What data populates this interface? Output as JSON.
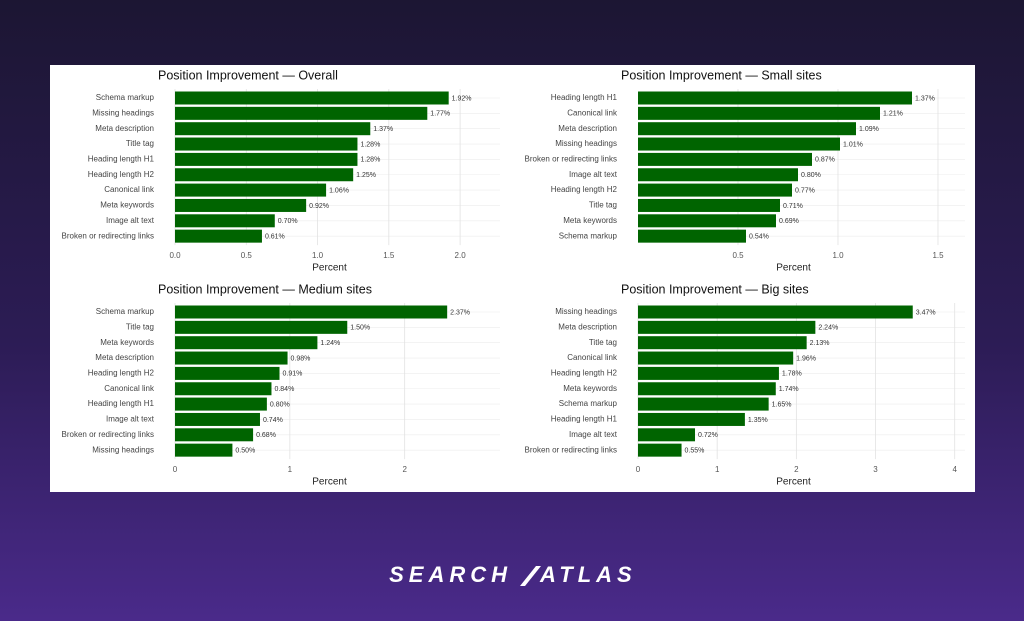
{
  "chart_data": [
    {
      "type": "barh",
      "title": "Position Improvement — Overall",
      "xlabel": "Percent",
      "categories": [
        "Schema markup",
        "Missing headings",
        "Meta description",
        "Title tag",
        "Heading length H1",
        "Heading length H2",
        "Canonical link",
        "Meta keywords",
        "Image alt text",
        "Broken or redirecting links"
      ],
      "values": [
        1.92,
        1.77,
        1.37,
        1.28,
        1.28,
        1.25,
        1.06,
        0.92,
        0.7,
        0.61
      ],
      "value_labels": [
        "1.92%",
        "1.77%",
        "1.37%",
        "1.28%",
        "1.28%",
        "1.25%",
        "1.06%",
        "0.92%",
        "0.70%",
        "0.61%"
      ],
      "color": "#006400",
      "xlim": [
        0,
        2.28
      ],
      "xticks": [
        {
          "value": 0,
          "label": "0.0"
        },
        0.5,
        {
          "value": 1,
          "label": "1.0"
        },
        1.5,
        {
          "value": 2,
          "label": "2.0"
        }
      ],
      "grid": true
    },
    {
      "type": "barh",
      "title": "Position Improvement — Small sites",
      "xlabel": "Percent",
      "categories": [
        "Heading length H1",
        "Canonical link",
        "Meta description",
        "Missing headings",
        "Broken or redirecting links",
        "Image alt text",
        "Heading length H2",
        "Title tag",
        "Meta keywords",
        "Schema markup"
      ],
      "values": [
        1.37,
        1.21,
        1.09,
        1.01,
        0.87,
        0.8,
        0.77,
        0.71,
        0.69,
        0.54
      ],
      "value_labels": [
        "1.37%",
        "1.21%",
        "1.09%",
        "1.01%",
        "0.87%",
        "0.80%",
        "0.77%",
        "0.71%",
        "0.69%",
        "0.54%"
      ],
      "color": "#006400",
      "xlim": [
        0,
        1.635
      ],
      "xticks": [
        0.5,
        {
          "value": 1,
          "label": "1.0"
        },
        1.5
      ],
      "grid": true
    },
    {
      "type": "barh",
      "title": "Position Improvement — Medium sites",
      "xlabel": "Percent",
      "categories": [
        "Schema markup",
        "Title tag",
        "Meta keywords",
        "Meta description",
        "Heading length H2",
        "Canonical link",
        "Heading length H1",
        "Image alt text",
        "Broken or redirecting links",
        "Missing headings"
      ],
      "values": [
        2.37,
        1.5,
        1.24,
        0.98,
        0.91,
        0.84,
        0.8,
        0.74,
        0.68,
        0.5
      ],
      "value_labels": [
        "2.37%",
        "1.50%",
        "1.24%",
        "0.98%",
        "0.91%",
        "0.84%",
        "0.80%",
        "0.74%",
        "0.68%",
        "0.50%"
      ],
      "color": "#006400",
      "xlim": [
        0,
        2.83
      ],
      "xticks": [
        0,
        1,
        2
      ],
      "grid": true
    },
    {
      "type": "barh",
      "title": "Position Improvement — Big sites",
      "xlabel": "Percent",
      "categories": [
        "Missing headings",
        "Meta description",
        "Title tag",
        "Canonical link",
        "Heading length H2",
        "Meta keywords",
        "Schema markup",
        "Heading length H1",
        "Image alt text",
        "Broken or redirecting links"
      ],
      "values": [
        3.47,
        2.24,
        2.13,
        1.96,
        1.78,
        1.74,
        1.65,
        1.35,
        0.72,
        0.55
      ],
      "value_labels": [
        "3.47%",
        "2.24%",
        "2.13%",
        "1.96%",
        "1.78%",
        "1.74%",
        "1.65%",
        "1.35%",
        "0.72%",
        "0.55%"
      ],
      "color": "#006400",
      "xlim": [
        0,
        4.13
      ],
      "xticks": [
        0,
        1,
        2,
        3,
        4
      ],
      "grid": true
    }
  ],
  "brand": {
    "left": "SEARCH",
    "right": "ATLAS"
  }
}
